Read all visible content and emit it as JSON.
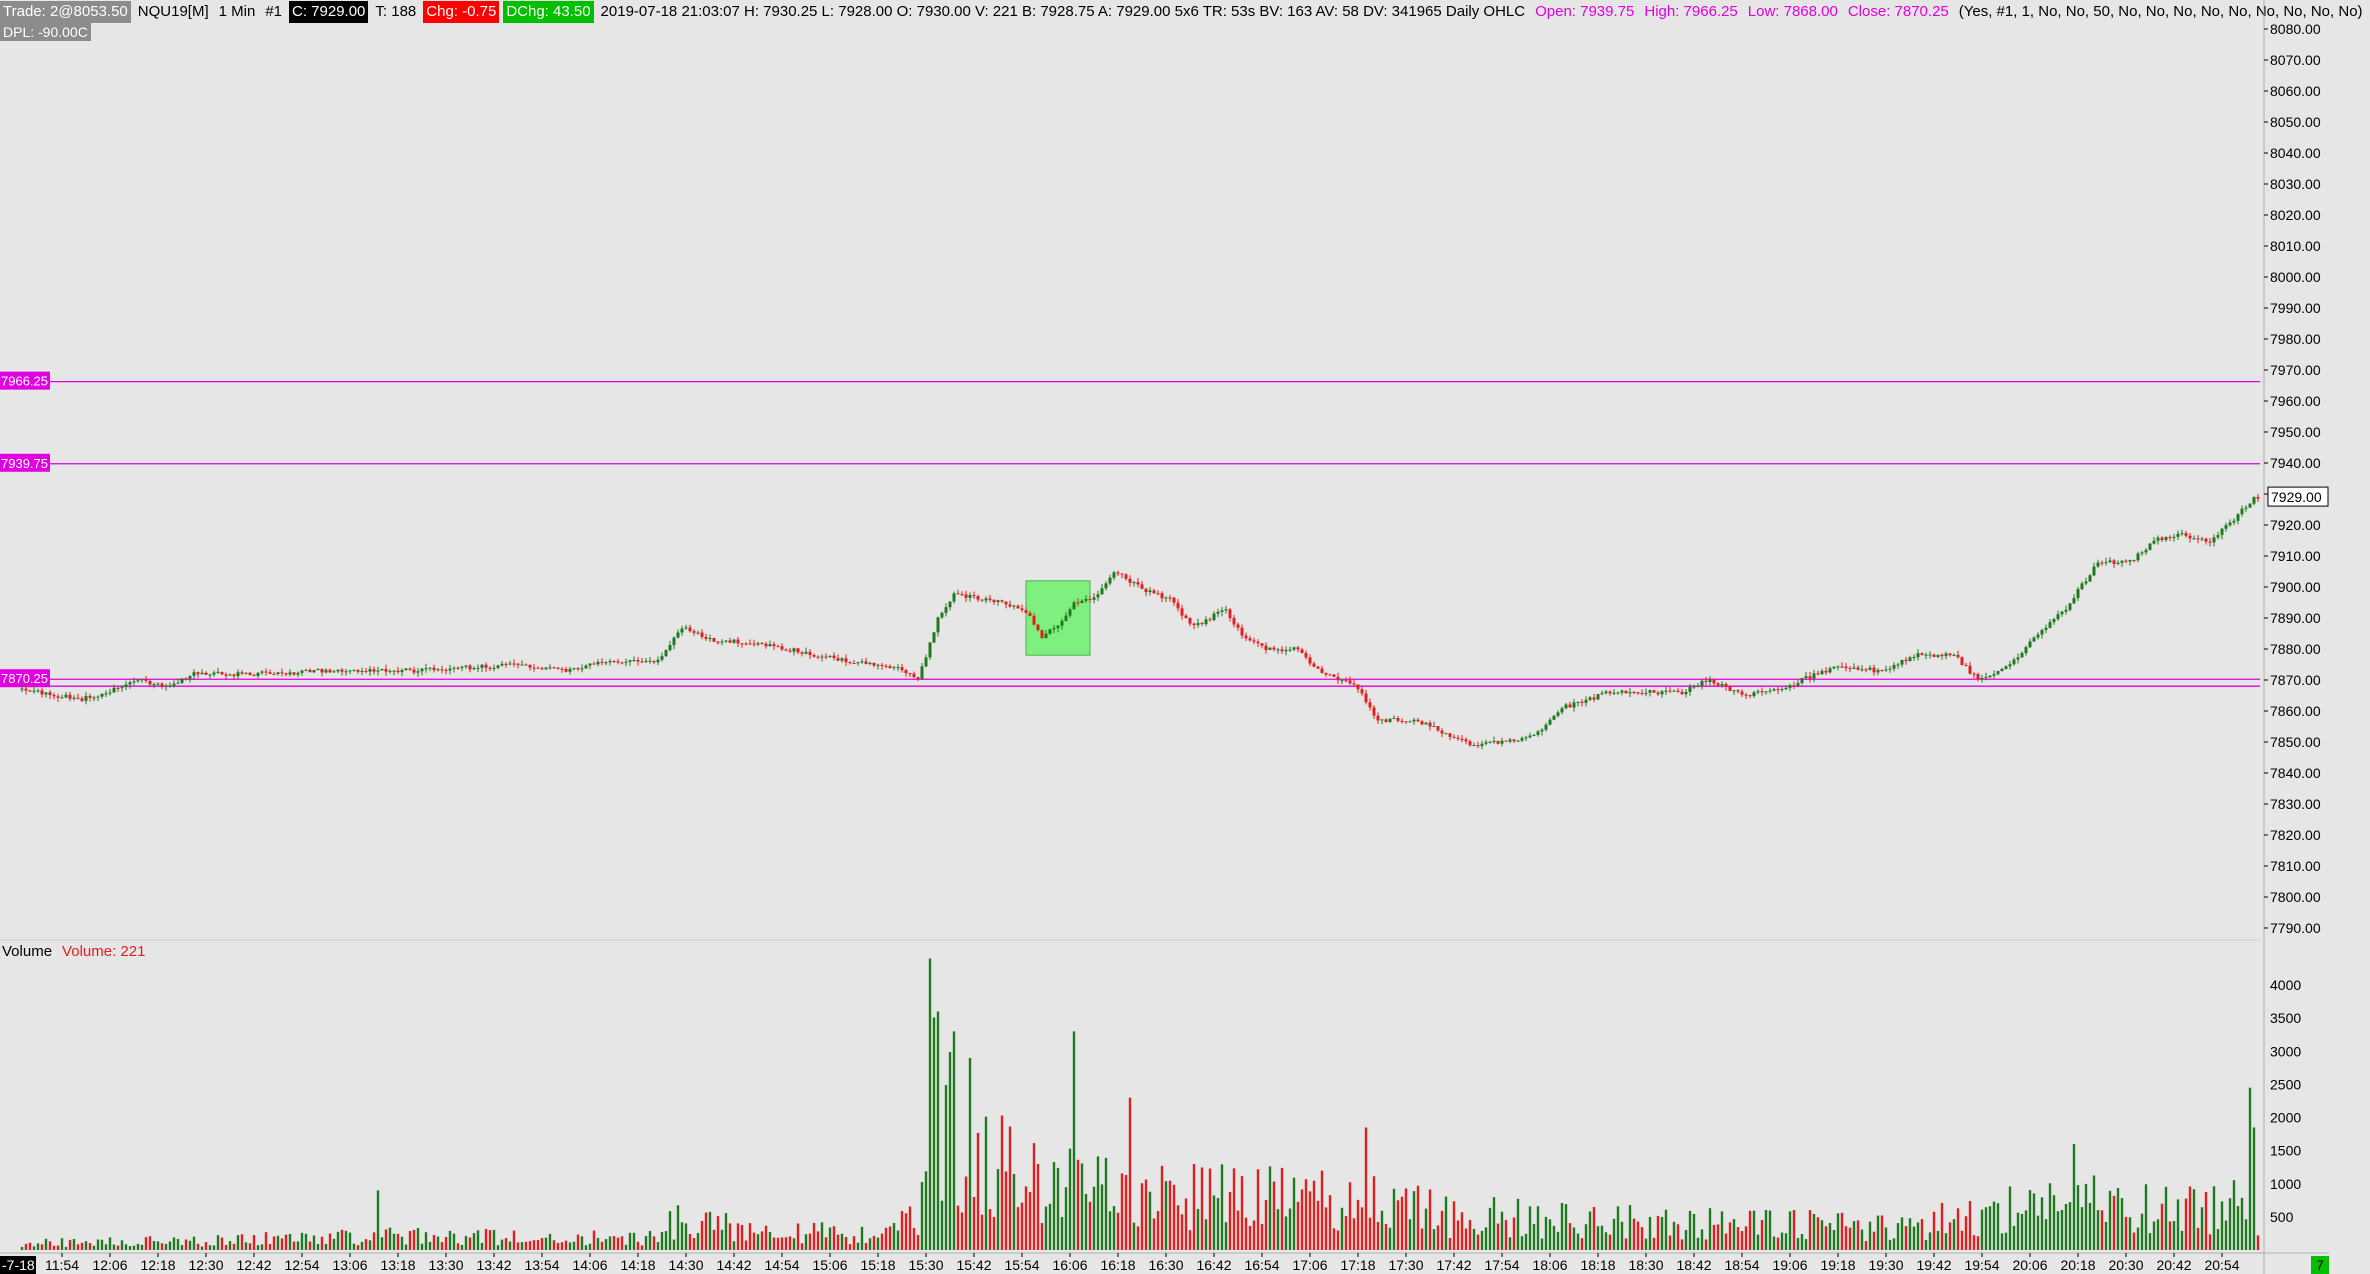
{
  "header": {
    "trade": "Trade: 2@8053.50",
    "symbol": "NQU19[M]",
    "interval": "1 Min",
    "chart_num": "#1",
    "close": "C: 7929.00",
    "ticks": "T: 188",
    "chg": "Chg: -0.75",
    "dchg": "DChg: 43.50",
    "bar_info": "2019-07-18 21:03:07 H: 7930.25 L: 7928.00 O: 7930.00 V: 221 B: 7928.75 A: 7929.00 5x6 TR: 53s BV: 163 AV: 58 DV: 341965 Daily OHLC",
    "open_lbl": "Open: 7939.75",
    "high_lbl": "High: 7966.25",
    "low_lbl": "Low: 7868.00",
    "close_lbl": "Close: 7870.25",
    "params": "(Yes, #1, 1, No, No, 50, No, No, No, No, No, No, No, No, No)",
    "dpl": "DPL: -90.00C"
  },
  "volume_panel": {
    "title": "Volume",
    "value_label": "Volume: 221"
  },
  "colors": {
    "up": "#1f7a1f",
    "down": "#e02020",
    "level": "#e000e0",
    "zone": "#7ff07f",
    "background": "#e6e6e6"
  },
  "corner_labels": {
    "left": "-7-18",
    "right": "7"
  },
  "chart_data": [
    {
      "type": "candlestick",
      "title": "NQU19[M] 1 Min",
      "ylim": [
        7785,
        8085
      ],
      "y_ticks": [
        "8080.00",
        "8070.00",
        "8060.00",
        "8050.00",
        "8040.00",
        "8030.00",
        "8020.00",
        "8010.00",
        "8000.00",
        "7990.00",
        "7980.00",
        "7970.00",
        "7960.00",
        "7950.00",
        "7940.00",
        "7930.00",
        "7920.00",
        "7910.00",
        "7900.00",
        "7890.00",
        "7880.00",
        "7870.00",
        "7860.00",
        "7850.00",
        "7840.00",
        "7830.00",
        "7820.00",
        "7810.00",
        "7800.00",
        "7790.00"
      ],
      "current_price_label": "7929.00",
      "x_ticks": [
        "11:54",
        "12:06",
        "12:18",
        "12:30",
        "12:42",
        "12:54",
        "13:06",
        "13:18",
        "13:30",
        "13:42",
        "13:54",
        "14:06",
        "14:18",
        "14:30",
        "14:42",
        "14:54",
        "15:06",
        "15:18",
        "15:30",
        "15:42",
        "15:54",
        "16:06",
        "16:18",
        "16:30",
        "16:42",
        "16:54",
        "17:06",
        "17:18",
        "17:30",
        "17:42",
        "17:54",
        "18:06",
        "18:18",
        "18:30",
        "18:42",
        "18:54",
        "19:06",
        "19:18",
        "19:30",
        "19:42",
        "19:54",
        "20:06",
        "20:18",
        "20:30",
        "20:42",
        "20:54"
      ],
      "levels": [
        {
          "name": "High",
          "value": 7966.25,
          "label": "7966.25"
        },
        {
          "name": "Open",
          "value": 7939.75,
          "label": "7939.75"
        },
        {
          "name": "Close",
          "value": 7870.25,
          "label": "7870.25"
        },
        {
          "name": "Low",
          "value": 7868.0
        }
      ],
      "zone": {
        "x_start": "15:55",
        "x_end": "16:11",
        "y_low": 7878,
        "y_high": 7902
      },
      "price_path": [
        [
          "11:44",
          7867
        ],
        [
          "11:54",
          7865
        ],
        [
          "12:00",
          7864
        ],
        [
          "12:06",
          7866
        ],
        [
          "12:14",
          7870
        ],
        [
          "12:22",
          7868
        ],
        [
          "12:28",
          7872
        ],
        [
          "12:36",
          7872
        ],
        [
          "12:48",
          7872
        ],
        [
          "13:00",
          7873
        ],
        [
          "13:12",
          7873
        ],
        [
          "13:24",
          7873
        ],
        [
          "13:36",
          7874
        ],
        [
          "13:48",
          7875
        ],
        [
          "14:00",
          7873
        ],
        [
          "14:12",
          7876
        ],
        [
          "14:24",
          7876
        ],
        [
          "14:30",
          7887
        ],
        [
          "14:38",
          7883
        ],
        [
          "14:48",
          7882
        ],
        [
          "15:00",
          7879
        ],
        [
          "15:12",
          7876
        ],
        [
          "15:24",
          7874
        ],
        [
          "15:29",
          7870
        ],
        [
          "15:34",
          7890
        ],
        [
          "15:38",
          7898
        ],
        [
          "15:44",
          7896
        ],
        [
          "15:50",
          7895
        ],
        [
          "15:56",
          7892
        ],
        [
          "16:00",
          7884
        ],
        [
          "16:04",
          7888
        ],
        [
          "16:08",
          7895
        ],
        [
          "16:14",
          7897
        ],
        [
          "16:18",
          7905
        ],
        [
          "16:26",
          7899
        ],
        [
          "16:32",
          7896
        ],
        [
          "16:38",
          7887
        ],
        [
          "16:46",
          7893
        ],
        [
          "16:50",
          7884
        ],
        [
          "16:56",
          7880
        ],
        [
          "17:04",
          7880
        ],
        [
          "17:10",
          7872
        ],
        [
          "17:18",
          7869
        ],
        [
          "17:24",
          7857
        ],
        [
          "17:34",
          7857
        ],
        [
          "17:42",
          7852
        ],
        [
          "17:48",
          7849
        ],
        [
          "17:56",
          7850
        ],
        [
          "18:04",
          7853
        ],
        [
          "18:10",
          7861
        ],
        [
          "18:22",
          7866
        ],
        [
          "18:30",
          7866
        ],
        [
          "18:40",
          7866
        ],
        [
          "18:46",
          7870
        ],
        [
          "18:56",
          7865
        ],
        [
          "19:06",
          7868
        ],
        [
          "19:18",
          7874
        ],
        [
          "19:30",
          7873
        ],
        [
          "19:38",
          7878
        ],
        [
          "19:48",
          7878
        ],
        [
          "19:54",
          7870
        ],
        [
          "20:00",
          7873
        ],
        [
          "20:08",
          7883
        ],
        [
          "20:16",
          7893
        ],
        [
          "20:24",
          7908
        ],
        [
          "20:32",
          7908
        ],
        [
          "20:38",
          7915
        ],
        [
          "20:44",
          7917
        ],
        [
          "20:52",
          7915
        ],
        [
          "20:58",
          7922
        ],
        [
          "21:03",
          7929
        ]
      ]
    },
    {
      "type": "bar",
      "title": "Volume",
      "ylim": [
        0,
        4500
      ],
      "y_ticks": [
        "4000",
        "3500",
        "3000",
        "2500",
        "2000",
        "1500",
        "1000",
        "500"
      ],
      "profile": [
        [
          "11:44",
          120
        ],
        [
          "12:26",
          160
        ],
        [
          "13:10",
          250
        ],
        [
          "14:20",
          200
        ],
        [
          "14:28",
          500
        ],
        [
          "15:14",
          250
        ],
        [
          "15:28",
          600
        ],
        [
          "15:31",
          2800
        ],
        [
          "15:40",
          1700
        ],
        [
          "16:00",
          1200
        ],
        [
          "16:24",
          1000
        ],
        [
          "17:00",
          900
        ],
        [
          "17:20",
          900
        ],
        [
          "17:40",
          600
        ],
        [
          "18:30",
          500
        ],
        [
          "19:30",
          400
        ],
        [
          "19:54",
          600
        ],
        [
          "20:10",
          900
        ],
        [
          "20:40",
          700
        ],
        [
          "20:56",
          800
        ],
        [
          "21:03",
          1200
        ]
      ],
      "spikes": [
        [
          "13:13",
          900
        ],
        [
          "15:31",
          4400
        ],
        [
          "15:33",
          3600
        ],
        [
          "15:37",
          3300
        ],
        [
          "15:41",
          2900
        ],
        [
          "16:07",
          3300
        ],
        [
          "16:21",
          2300
        ],
        [
          "17:20",
          1850
        ],
        [
          "20:17",
          1600
        ],
        [
          "21:01",
          2450
        ],
        [
          "21:02",
          1850
        ],
        [
          "21:03",
          221
        ]
      ]
    }
  ]
}
